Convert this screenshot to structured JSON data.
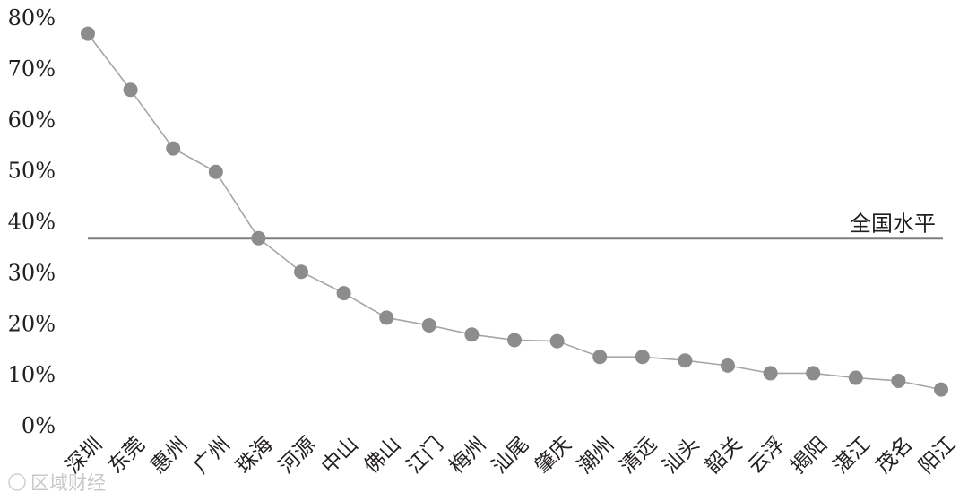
{
  "chart_data": {
    "type": "line",
    "title": "",
    "xlabel": "",
    "ylabel": "",
    "categories": [
      "深圳",
      "东莞",
      "惠州",
      "广州",
      "珠海",
      "河源",
      "中山",
      "佛山",
      "江门",
      "梅州",
      "汕尾",
      "肇庆",
      "潮州",
      "清远",
      "汕头",
      "韶关",
      "云浮",
      "揭阳",
      "湛江",
      "茂名",
      "阳江"
    ],
    "series": [
      {
        "name": "",
        "values": [
          76.9,
          65.9,
          54.4,
          49.8,
          36.8,
          30.2,
          26.0,
          21.2,
          19.7,
          17.9,
          16.8,
          16.6,
          13.5,
          13.5,
          12.8,
          11.8,
          10.3,
          10.3,
          9.4,
          8.8,
          7.1
        ]
      }
    ],
    "reference_line": {
      "label": "全国水平",
      "value": 36.8
    },
    "ylim": [
      0,
      80
    ],
    "yticks": [
      "0%",
      "10%",
      "20%",
      "30%",
      "40%",
      "50%",
      "60%",
      "70%",
      "80%"
    ],
    "grid": false,
    "colors": {
      "line": "#a6a6a6",
      "marker": "#8c8c8d",
      "reference": "#7f7f7f",
      "text": "#231f20"
    }
  },
  "watermark": "区域财经"
}
